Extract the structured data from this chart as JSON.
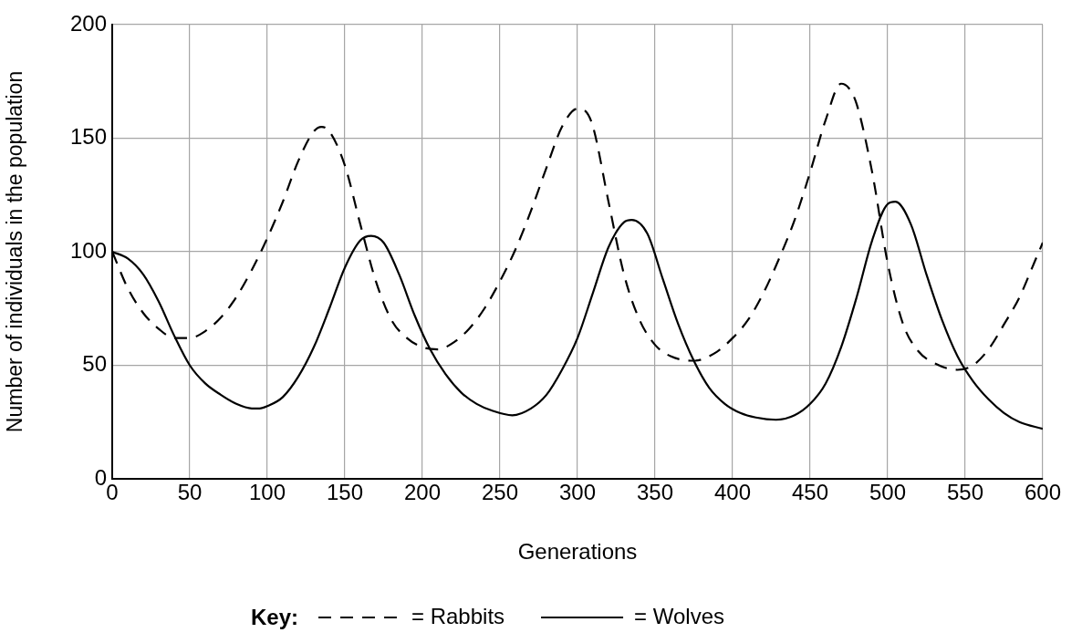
{
  "chart_data": {
    "type": "line",
    "xlabel": "Generations",
    "ylabel": "Number of individuals in the population",
    "legend_title": "Key:",
    "legend": "bottom",
    "grid": true,
    "marker": "none",
    "xlim": [
      0,
      600
    ],
    "xticks": [
      0,
      50,
      100,
      150,
      200,
      250,
      300,
      350,
      400,
      450,
      500,
      550,
      600
    ],
    "ylim": [
      0,
      200
    ],
    "yticks": [
      0,
      50,
      100,
      150,
      200
    ],
    "series": [
      {
        "name": "= Rabbits",
        "color": "#000000",
        "line_style": "dashed",
        "x": [
          0,
          10,
          20,
          30,
          40,
          50,
          60,
          70,
          80,
          90,
          100,
          110,
          120,
          130,
          135,
          140,
          150,
          160,
          170,
          180,
          190,
          200,
          210,
          220,
          230,
          240,
          250,
          260,
          270,
          280,
          290,
          300,
          305,
          310,
          320,
          330,
          340,
          350,
          360,
          375,
          390,
          400,
          410,
          420,
          430,
          440,
          450,
          460,
          470,
          475,
          480,
          490,
          500,
          510,
          520,
          530,
          545,
          555,
          565,
          575,
          585,
          595,
          600
        ],
        "values": [
          100,
          84,
          73,
          66,
          62,
          62,
          65,
          71,
          80,
          92,
          106,
          122,
          140,
          153,
          155,
          153,
          138,
          112,
          87,
          70,
          62,
          58,
          57,
          60,
          66,
          75,
          87,
          101,
          118,
          137,
          155,
          163,
          162,
          155,
          122,
          90,
          70,
          59,
          54,
          52,
          56,
          62,
          70,
          82,
          97,
          114,
          135,
          158,
          174,
          172,
          165,
          135,
          95,
          68,
          56,
          51,
          48,
          50,
          57,
          68,
          80,
          96,
          104
        ]
      },
      {
        "name": "= Wolves",
        "color": "#000000",
        "line_style": "solid",
        "x": [
          0,
          10,
          20,
          30,
          40,
          50,
          60,
          70,
          80,
          90,
          95,
          100,
          110,
          120,
          130,
          140,
          150,
          160,
          167,
          175,
          185,
          195,
          205,
          215,
          225,
          235,
          245,
          258,
          270,
          280,
          290,
          300,
          310,
          320,
          330,
          335,
          345,
          355,
          365,
          375,
          385,
          395,
          405,
          415,
          428,
          440,
          450,
          460,
          470,
          480,
          490,
          500,
          505,
          515,
          525,
          535,
          545,
          555,
          565,
          575,
          585,
          600
        ],
        "values": [
          100,
          97,
          90,
          78,
          63,
          50,
          42,
          37,
          33,
          31,
          31,
          32,
          36,
          45,
          58,
          75,
          93,
          105,
          107,
          104,
          90,
          72,
          57,
          46,
          38,
          33,
          30,
          28,
          31,
          37,
          48,
          62,
          82,
          102,
          113,
          114,
          108,
          88,
          68,
          52,
          40,
          33,
          29,
          27,
          26,
          28,
          33,
          42,
          58,
          80,
          105,
          121,
          122,
          112,
          90,
          70,
          54,
          43,
          35,
          29,
          25,
          22
        ]
      }
    ]
  }
}
